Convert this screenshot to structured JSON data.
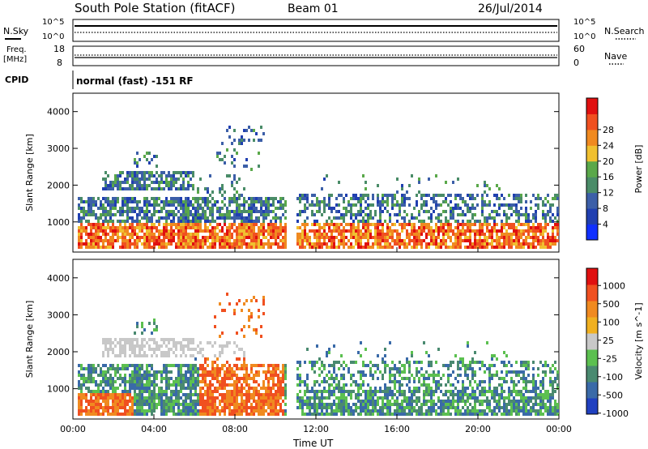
{
  "header": {
    "station": "South Pole Station (fitACF)",
    "beam": "Beam 01",
    "date": "26/Jul/2014"
  },
  "top_panels": {
    "nsky_label": "N.Sky",
    "nsearch_label": "N.Search",
    "nsky_ticks": [
      "10^5",
      "10^0"
    ],
    "nsearch_ticks": [
      "10^5",
      "10^0"
    ],
    "freq_label": "Freq.",
    "freq_unit": "[MHz]",
    "freq_ticks": [
      "18",
      "8"
    ],
    "nave_label": "Nave",
    "nave_ticks": [
      "60",
      "0"
    ],
    "cpid_label": "CPID",
    "cpid_text": "normal (fast) -151 RF"
  },
  "chart_data": [
    {
      "type": "heatmap",
      "name": "power",
      "ylabel": "Slant Range [km]",
      "xlabel": "",
      "ylim": [
        180,
        4500
      ],
      "xlim": [
        0,
        24
      ],
      "y_ticks": [
        1000,
        2000,
        3000,
        4000
      ],
      "x_ticks": [
        0,
        4,
        8,
        12,
        16,
        20,
        24
      ],
      "colorbar": {
        "label": "Power [dB]",
        "ticks": [
          "4",
          "8",
          "12",
          "16",
          "20",
          "24",
          "28"
        ],
        "colors": [
          "#1030ff",
          "#203fb0",
          "#3c5fa8",
          "#4a8c68",
          "#5aa84a",
          "#f0c030",
          "#f08a20",
          "#f05020",
          "#e01010"
        ]
      }
    },
    {
      "type": "heatmap",
      "name": "velocity",
      "ylabel": "Slant Range [km]",
      "xlabel": "Time UT",
      "ylim": [
        180,
        4500
      ],
      "xlim": [
        0,
        24
      ],
      "y_ticks": [
        1000,
        2000,
        3000,
        4000
      ],
      "x_ticks": [
        0,
        4,
        8,
        12,
        16,
        20,
        24
      ],
      "x_tick_labels": [
        "00:00",
        "04:00",
        "08:00",
        "12:00",
        "16:00",
        "20:00",
        "00:00"
      ],
      "colorbar": {
        "label": "Velocity [m s^-1]",
        "ticks": [
          "1000",
          "500",
          "100",
          "25",
          "-25",
          "-100",
          "-500",
          "-1000"
        ],
        "colors": [
          "#2040c0",
          "#3a6aa8",
          "#4a8a70",
          "#5cc050",
          "#c8c8c8",
          "#f0b020",
          "#f08a20",
          "#f05020",
          "#e01010"
        ]
      }
    }
  ]
}
